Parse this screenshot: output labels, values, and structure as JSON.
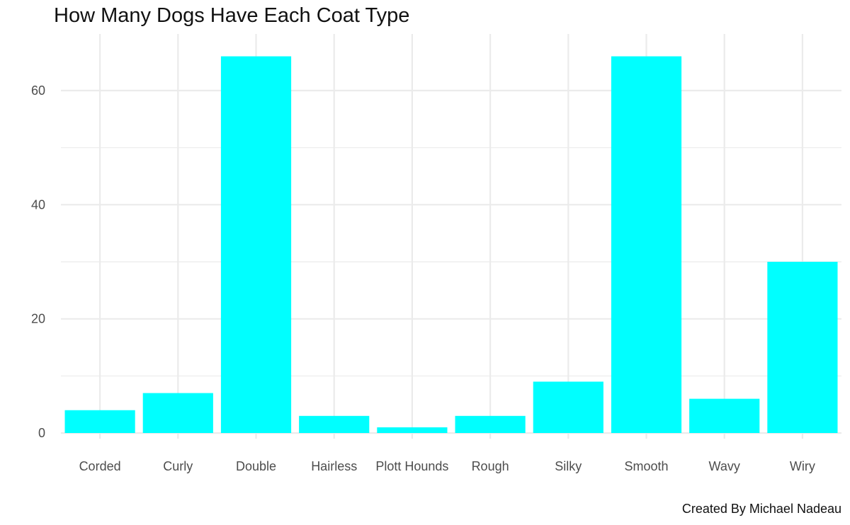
{
  "chart_data": {
    "type": "bar",
    "title": "How Many Dogs Have Each Coat Type",
    "caption": "Created By Michael Nadeau",
    "xlabel": "",
    "ylabel": "",
    "categories": [
      "Corded",
      "Curly",
      "Double",
      "Hairless",
      "Plott Hounds",
      "Rough",
      "Silky",
      "Smooth",
      "Wavy",
      "Wiry"
    ],
    "values": [
      4,
      7,
      66,
      3,
      1,
      3,
      9,
      66,
      6,
      30
    ],
    "ylim": [
      0,
      69
    ],
    "yticks": [
      "0",
      "20",
      "40",
      "60"
    ],
    "grid": true,
    "legend": "none",
    "colors": {
      "bar": "#00FFFF",
      "grid": "#EBEBEB",
      "text": "#4D4D4D"
    }
  }
}
